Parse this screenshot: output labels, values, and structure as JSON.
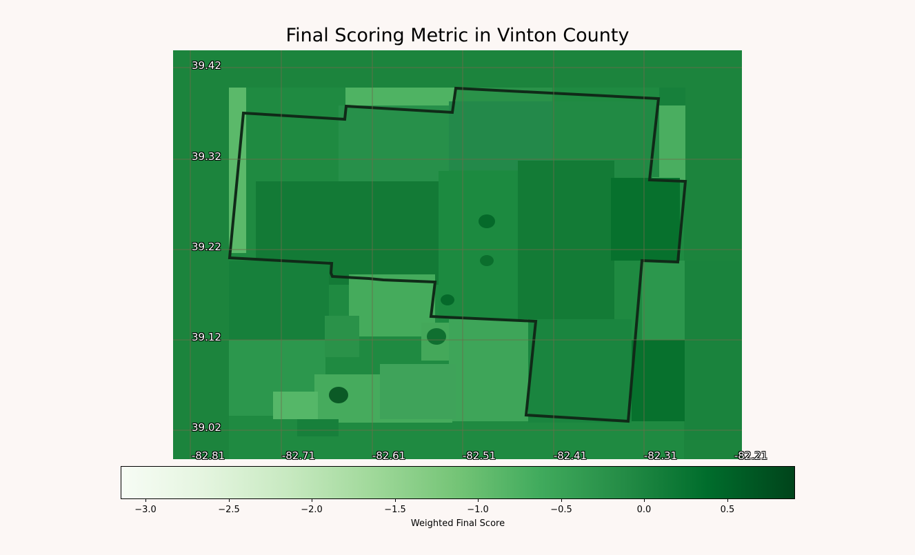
{
  "title": "Final Scoring Metric in Vinton County",
  "latitude_ticks": [
    "39.42",
    "39.32",
    "39.22",
    "39.12",
    "39.02"
  ],
  "longitude_ticks": [
    "-82.81",
    "-82.71",
    "-82.61",
    "-82.51",
    "-82.41",
    "-82.31",
    "-82.21"
  ],
  "colorbar": {
    "colormap": "Greens",
    "min": -3.15,
    "max": 0.9,
    "ticks": [
      "−3.0",
      "−2.5",
      "−2.0",
      "−1.5",
      "−1.0",
      "−0.5",
      "0.0",
      "0.5"
    ],
    "label": "Weighted Final Score"
  },
  "colors": {
    "background": "#fcf7f5",
    "map_base": "#1c843d",
    "boundary": "#102a18",
    "gridline": "#6b6b4a"
  }
}
